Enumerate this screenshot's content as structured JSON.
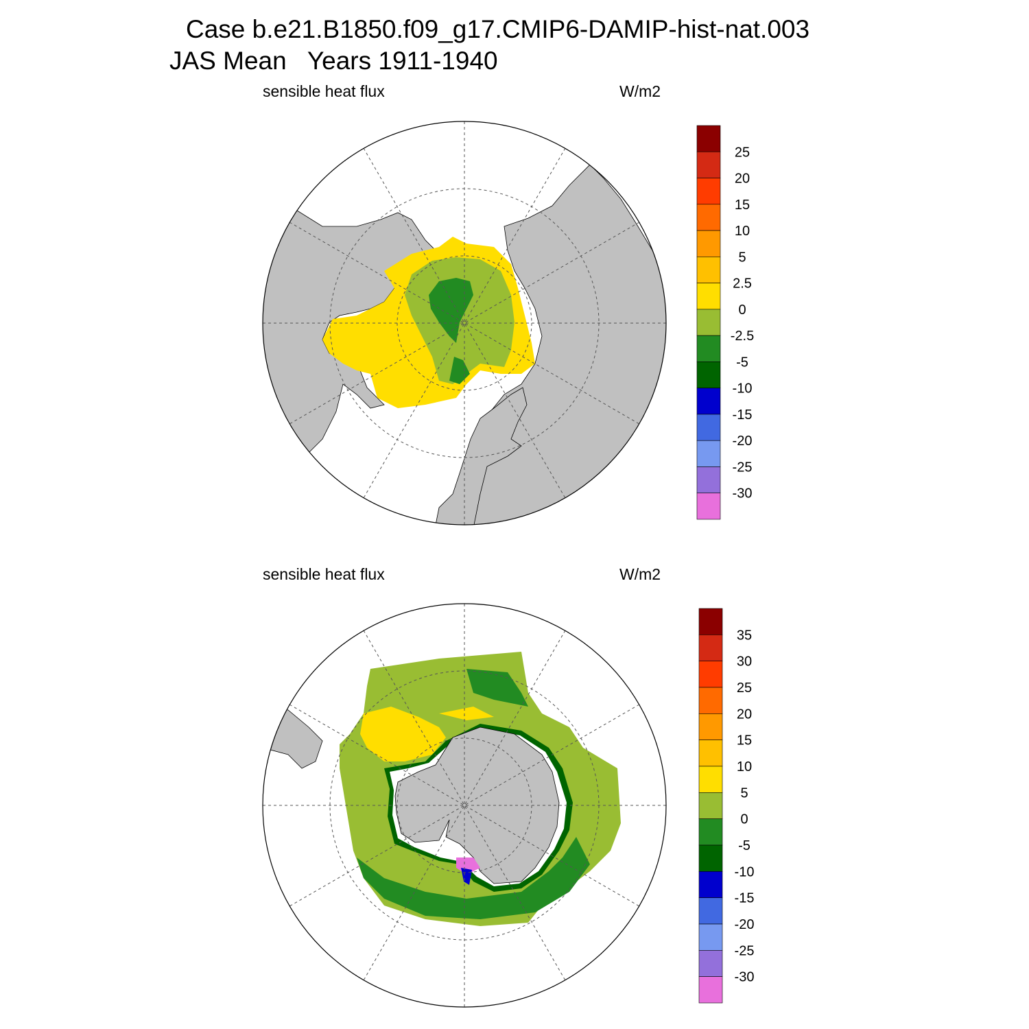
{
  "title": {
    "line1": "Case b.e21.B1850.f09_g17.CMIP6-DAMIP-hist-nat.003",
    "line2": "JAS Mean   Years 1911-1940"
  },
  "panels": [
    {
      "id": "north",
      "left_label": "sensible heat flux",
      "right_label": "W/m2",
      "colorbar": {
        "labels": [
          "25",
          "20",
          "15",
          "10",
          "5",
          "2.5",
          "0",
          "-2.5",
          "-5",
          "-10",
          "-15",
          "-20",
          "-25",
          "-30"
        ],
        "colors": [
          "#8b0000",
          "#d42a14",
          "#ff3c00",
          "#ff6a00",
          "#ff9900",
          "#ffc000",
          "#ffde00",
          "#99bd33",
          "#228b22",
          "#006400",
          "#0000cd",
          "#4169e1",
          "#7799f0",
          "#9370db",
          "#e870dc"
        ]
      }
    },
    {
      "id": "south",
      "left_label": "sensible heat flux",
      "right_label": "W/m2",
      "colorbar": {
        "labels": [
          "35",
          "30",
          "25",
          "20",
          "15",
          "10",
          "5",
          "0",
          "-5",
          "-10",
          "-15",
          "-20",
          "-25",
          "-30"
        ],
        "colors": [
          "#8b0000",
          "#d42a14",
          "#ff3c00",
          "#ff6a00",
          "#ff9900",
          "#ffc000",
          "#ffde00",
          "#99bd33",
          "#228b22",
          "#006400",
          "#0000cd",
          "#4169e1",
          "#7799f0",
          "#9370db",
          "#e870dc"
        ]
      }
    }
  ],
  "colors": {
    "land": "#c0c0c0",
    "background": "#ffffff"
  }
}
